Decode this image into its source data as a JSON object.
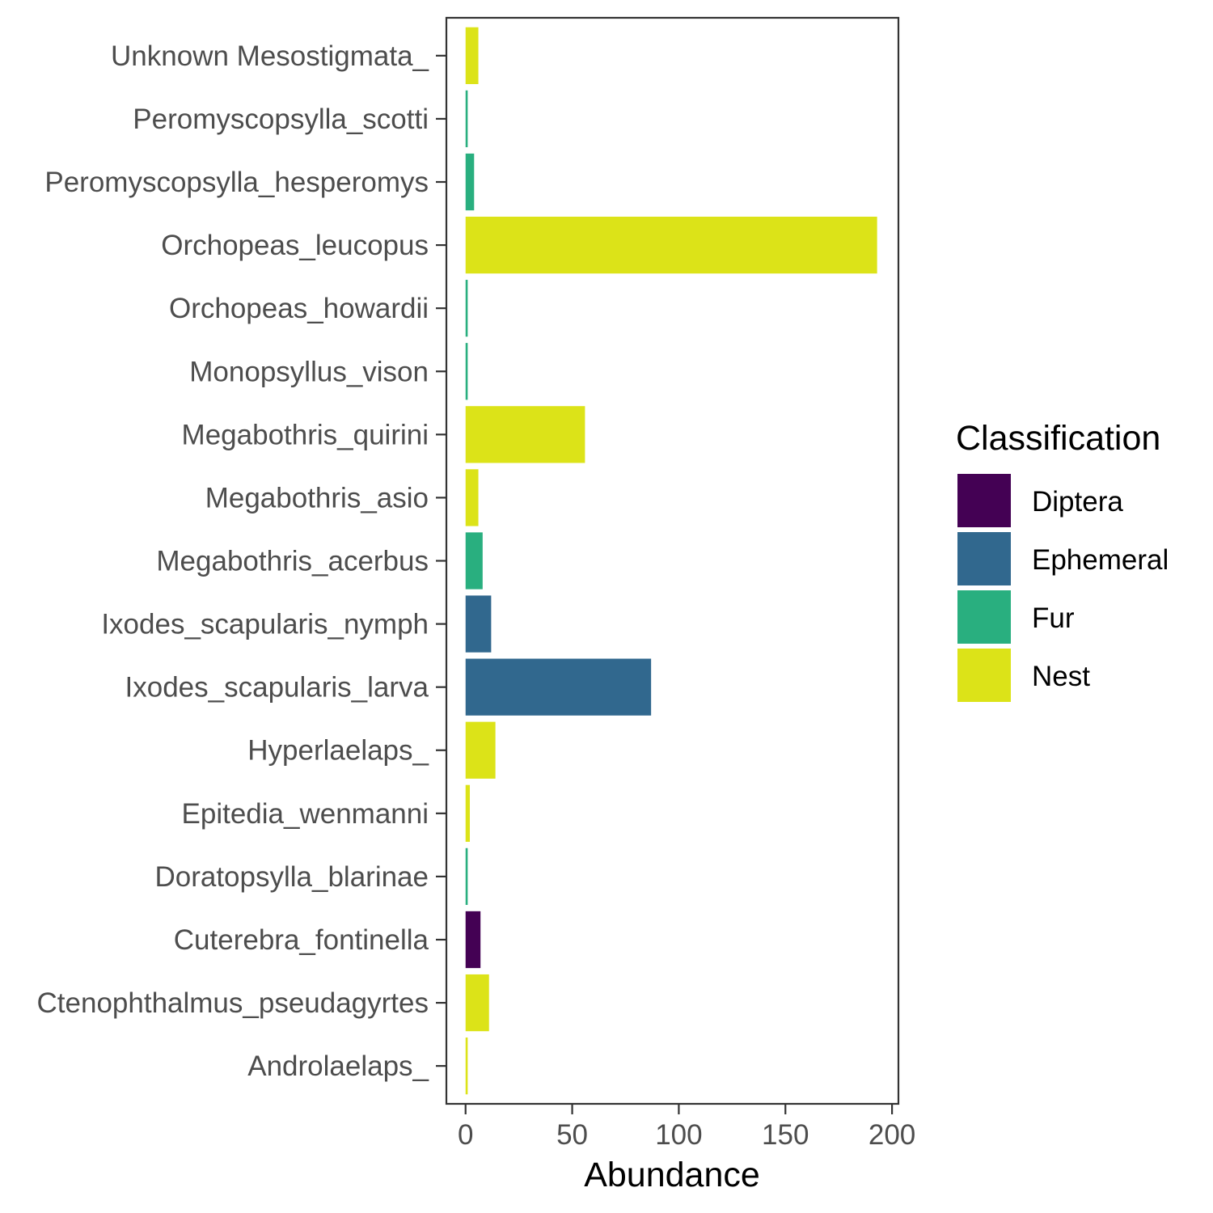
{
  "chart_data": {
    "type": "bar",
    "orientation": "horizontal",
    "xlabel": "Abundance",
    "ylabel": "",
    "xlim": [
      -9,
      203
    ],
    "x_ticks": [
      0,
      50,
      100,
      150,
      200
    ],
    "grid": false,
    "legend": {
      "title": "Classification",
      "position": "right",
      "entries": [
        {
          "label": "Diptera",
          "color": "#440154"
        },
        {
          "label": "Ephemeral",
          "color": "#31688E"
        },
        {
          "label": "Fur",
          "color": "#29AF7F"
        },
        {
          "label": "Nest",
          "color": "#DCE318"
        }
      ]
    },
    "categories": [
      "Unknown Mesostigmata_",
      "Peromyscopsylla_scotti",
      "Peromyscopsylla_hesperomys",
      "Orchopeas_leucopus",
      "Orchopeas_howardii",
      "Monopsyllus_vison",
      "Megabothris_quirini",
      "Megabothris_asio",
      "Megabothris_acerbus",
      "Ixodes_scapularis_nymph",
      "Ixodes_scapularis_larva",
      "Hyperlaelaps_",
      "Epitedia_wenmanni",
      "Doratopsylla_blarinae",
      "Cuterebra_fontinella",
      "Ctenophthalmus_pseudagyrtes",
      "Androlaelaps_"
    ],
    "values": [
      6,
      1,
      4,
      193,
      1,
      1,
      56,
      6,
      8,
      12,
      87,
      14,
      2,
      1,
      7,
      11,
      1
    ],
    "classes": [
      "Nest",
      "Fur",
      "Fur",
      "Nest",
      "Fur",
      "Fur",
      "Nest",
      "Nest",
      "Fur",
      "Ephemeral",
      "Ephemeral",
      "Nest",
      "Nest",
      "Fur",
      "Diptera",
      "Nest",
      "Nest"
    ]
  }
}
